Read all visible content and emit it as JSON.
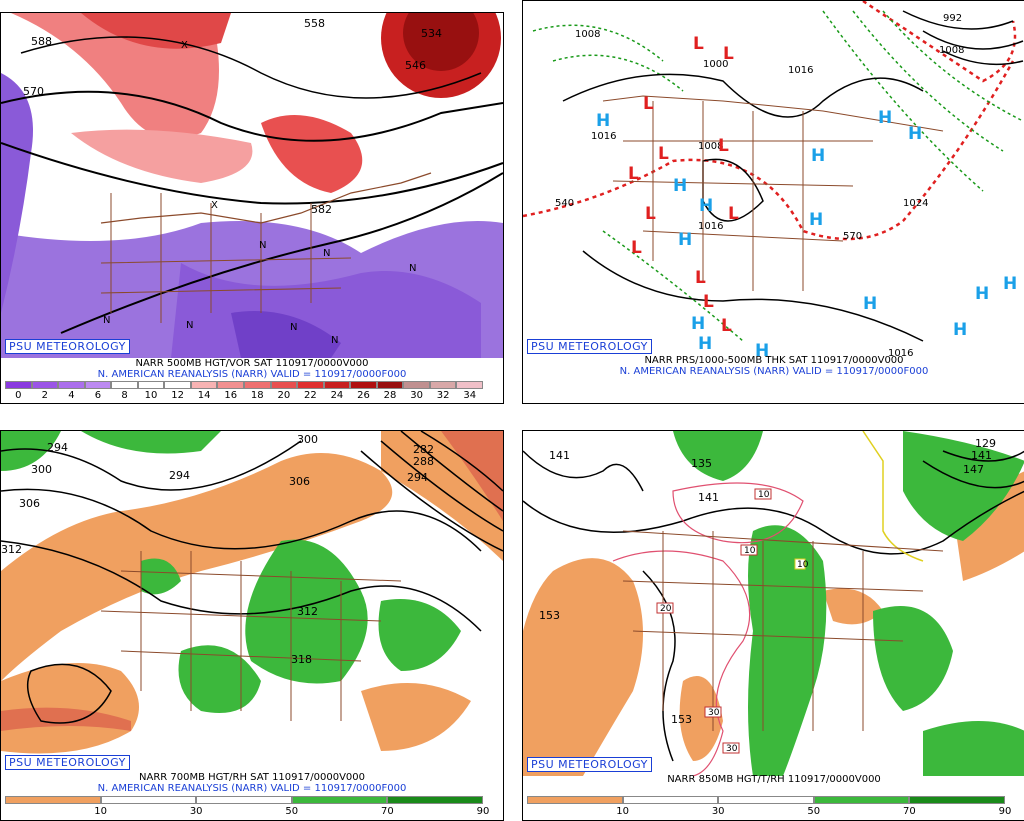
{
  "psu_label": "PSU METEOROLOGY",
  "panels": {
    "p1": {
      "title": "NARR 500MB HGT/VOR SAT 110917/0000V000",
      "subtitle": "N. AMERICAN REANALYSIS (NARR) VALID = 110917/0000F000",
      "scale_labels": [
        "0",
        "2",
        "4",
        "6",
        "8",
        "10",
        "12",
        "14",
        "16",
        "18",
        "20",
        "22",
        "24",
        "26",
        "28",
        "30",
        "32",
        "34"
      ],
      "scale_colors": [
        "#8a3ae0",
        "#9b55e6",
        "#ab6fec",
        "#bc8af2",
        "#ffffff",
        "#ffffff",
        "#ffffff",
        "#f7b3b3",
        "#f29090",
        "#ee7070",
        "#e85050",
        "#e03030",
        "#c82020",
        "#b01010",
        "#981010",
        "#c09090",
        "#d8a8a8",
        "#f0c0c8"
      ],
      "contour_labels": [
        "558",
        "546",
        "570",
        "588",
        "582",
        "534"
      ],
      "vort_letters": [
        "N",
        "N",
        "N",
        "N",
        "N",
        "N",
        "N",
        "X",
        "X"
      ]
    },
    "p2": {
      "title": "NARR PRS/1000-500MB THK SAT 110917/0000V000",
      "subtitle": "N. AMERICAN REANALYSIS (NARR) VALID = 110917/0000F000",
      "contour_labels": [
        "1008",
        "1016",
        "1000",
        "1008",
        "992",
        "1016",
        "1024",
        "1016",
        "1016",
        "1008",
        "570",
        "540",
        "1016"
      ],
      "low_symbol": "L",
      "high_symbol": "H"
    },
    "p3": {
      "title": "NARR 700MB HGT/RH SAT 110917/0000V000",
      "subtitle": "N. AMERICAN REANALYSIS (NARR) VALID = 110917/0000F000",
      "scale_labels": [
        "10",
        "30",
        "50",
        "70",
        "90"
      ],
      "scale_colors": [
        "#f0a060",
        "#ffffff",
        "#ffffff",
        "#3cb83c",
        "#1a8a1a"
      ],
      "contour_labels": [
        "294",
        "300",
        "306",
        "312",
        "294",
        "300",
        "306",
        "312",
        "318",
        "282",
        "288",
        "294"
      ]
    },
    "p4": {
      "title": "NARR 850MB HGT/T/RH 110917/0000V000",
      "scale_labels": [
        "10",
        "30",
        "50",
        "70",
        "90"
      ],
      "scale_colors": [
        "#f0a060",
        "#ffffff",
        "#ffffff",
        "#3cb83c",
        "#1a8a1a"
      ],
      "contour_labels": [
        "141",
        "135",
        "141",
        "153",
        "153",
        "129",
        "141",
        "147"
      ],
      "temp_labels": [
        "10",
        "10",
        "20",
        "30",
        "30",
        "10"
      ]
    }
  },
  "colors": {
    "vort_purple": "#8a5ad8",
    "vort_red": "#e85a5a",
    "rh_green": "#3cb83c",
    "rh_orange": "#f0a060",
    "border_brown": "#8b4a2b",
    "low_red": "#e02020",
    "high_blue": "#1aa0e8",
    "thk_green": "#1a9a1a"
  }
}
